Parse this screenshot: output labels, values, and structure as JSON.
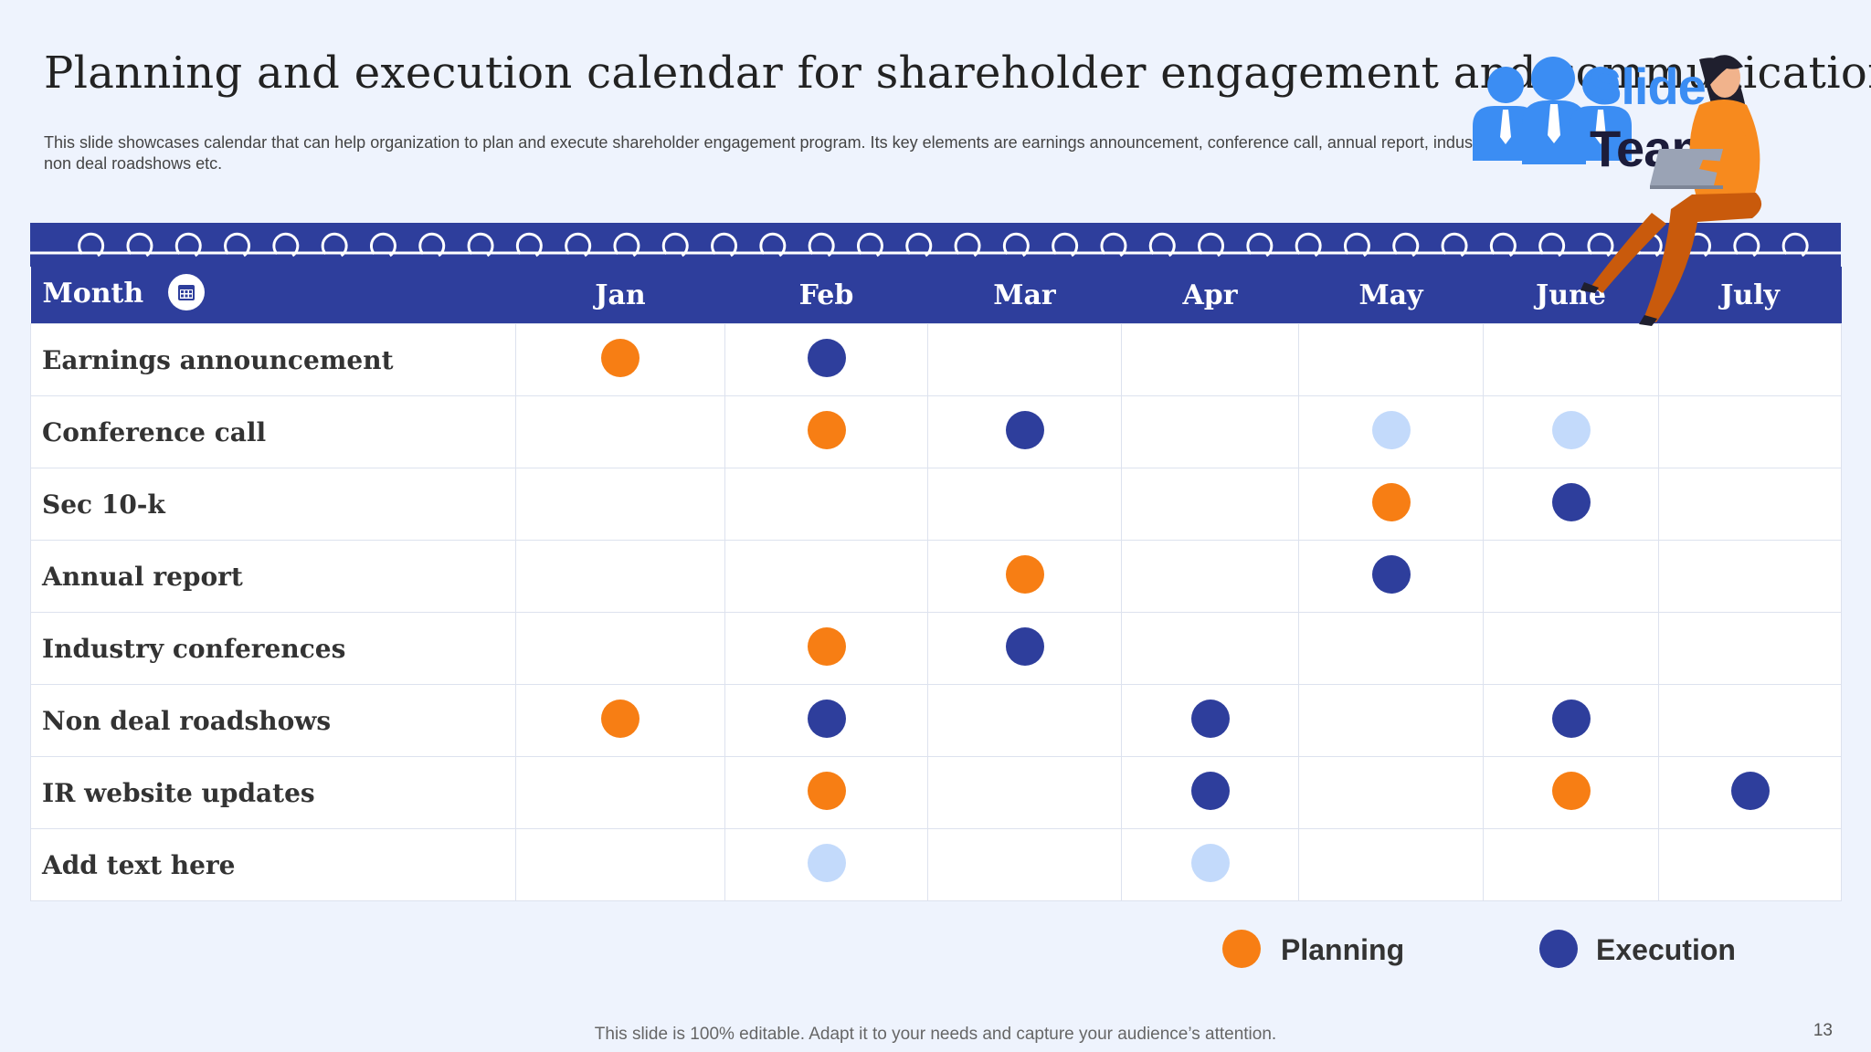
{
  "slide": {
    "title": "Planning and execution calendar for shareholder engagement and communication",
    "subtitle": "This slide showcases calendar that can help organization to plan and execute shareholder engagement program. Its key elements are earnings announcement, conference call, annual report, industry conferences, non deal roadshows etc.",
    "footer": "This slide is 100% editable. Adapt it to your needs and capture your audience’s attention.",
    "page_number": "13"
  },
  "logo": {
    "line1": "Slide",
    "line2": "Team"
  },
  "calendar": {
    "header_label": "Month",
    "months": [
      "Jan",
      "Feb",
      "Mar",
      "Apr",
      "May",
      "June",
      "July"
    ],
    "rows": [
      {
        "label": "Earnings announcement",
        "cells": [
          "planning",
          "execution",
          "",
          "",
          "",
          "",
          ""
        ]
      },
      {
        "label": "Conference call",
        "cells": [
          "",
          "planning",
          "execution",
          "",
          "placeholder",
          "placeholder",
          ""
        ]
      },
      {
        "label": "Sec 10-k",
        "cells": [
          "",
          "",
          "",
          "",
          "planning",
          "execution",
          ""
        ]
      },
      {
        "label": "Annual report",
        "cells": [
          "",
          "",
          "planning",
          "",
          "execution",
          "",
          ""
        ]
      },
      {
        "label": "Industry conferences",
        "cells": [
          "",
          "planning",
          "execution",
          "",
          "",
          "",
          ""
        ]
      },
      {
        "label": "Non deal roadshows",
        "cells": [
          "planning",
          "execution",
          "",
          "execution",
          "",
          "execution",
          ""
        ]
      },
      {
        "label": "IR website updates",
        "cells": [
          "",
          "planning",
          "",
          "execution",
          "",
          "planning",
          "execution"
        ]
      },
      {
        "label": "Add text here",
        "cells": [
          "",
          "placeholder",
          "",
          "placeholder",
          "",
          "",
          ""
        ]
      }
    ]
  },
  "legend": [
    {
      "key": "planning",
      "label": "Planning"
    },
    {
      "key": "execution",
      "label": "Execution"
    }
  ],
  "colors": {
    "planning": "#f77e14",
    "execution": "#2e3e9c",
    "placeholder": "#c3dafb",
    "header": "#2e3e9c"
  },
  "icons": {
    "month_icon": "calendar-icon",
    "logo_icon": "people-icon",
    "illustration": "woman-with-laptop"
  }
}
